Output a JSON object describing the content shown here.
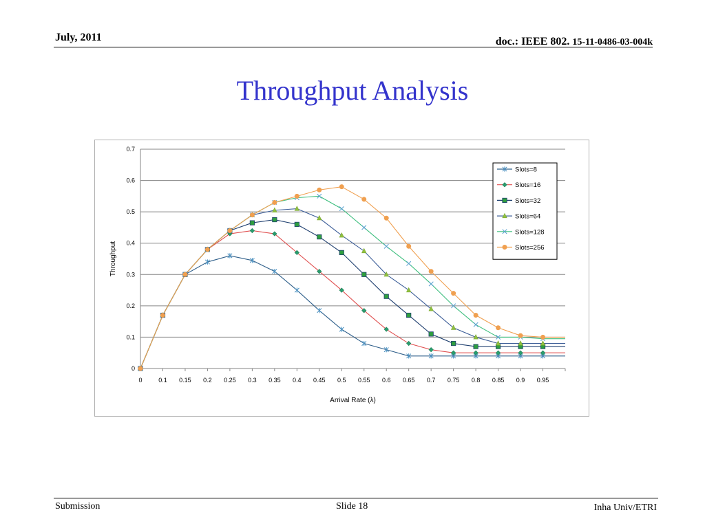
{
  "header": {
    "date": "July, 2011",
    "doc_prefix": "doc.: IEEE 802.",
    "doc_number": "15-11-0486-03-004k"
  },
  "slide_title": "Throughput Analysis",
  "footer": {
    "left": "Submission",
    "center": "Slide 18",
    "right": "Inha Univ/ETRI"
  },
  "colors": {
    "title": "#3333cc"
  },
  "chart_data": {
    "type": "line",
    "title": "",
    "xlabel": "Arrival Rate (λ)",
    "ylabel": "Throughput",
    "x": [
      0,
      0.1,
      0.15,
      0.2,
      0.25,
      0.3,
      0.35,
      0.4,
      0.45,
      0.5,
      0.55,
      0.6,
      0.65,
      0.7,
      0.75,
      0.8,
      0.85,
      0.9,
      0.95
    ],
    "y_ticks": [
      "0",
      "0.1",
      "0.2",
      "0.3",
      "0.4",
      "0.5",
      "0.6",
      "0.7"
    ],
    "ylim": [
      0,
      0.7
    ],
    "grid": "horizontal",
    "legend_position": "top-right",
    "series": [
      {
        "name": "Slots=8",
        "color": "#2f5f8a",
        "marker": "asterisk",
        "values": [
          0,
          0.17,
          0.3,
          0.34,
          0.36,
          0.345,
          0.31,
          0.25,
          0.185,
          0.125,
          0.08,
          0.06,
          0.04,
          0.04,
          0.04,
          0.04,
          0.04,
          0.04,
          0.04
        ]
      },
      {
        "name": "Slots=16",
        "color": "#e05050",
        "marker": "diamond",
        "values": [
          0,
          0.17,
          0.3,
          0.38,
          0.43,
          0.44,
          0.43,
          0.37,
          0.31,
          0.25,
          0.185,
          0.125,
          0.08,
          0.06,
          0.05,
          0.05,
          0.05,
          0.05,
          0.05
        ]
      },
      {
        "name": "Slots=32",
        "color": "#1f3f6f",
        "marker": "square",
        "values": [
          0,
          0.17,
          0.3,
          0.38,
          0.44,
          0.465,
          0.475,
          0.46,
          0.42,
          0.37,
          0.3,
          0.23,
          0.17,
          0.11,
          0.08,
          0.07,
          0.07,
          0.07,
          0.07
        ]
      },
      {
        "name": "Slots=64",
        "color": "#3e5f99",
        "marker": "triangle",
        "values": [
          0,
          0.17,
          0.3,
          0.38,
          0.44,
          0.49,
          0.505,
          0.51,
          0.48,
          0.425,
          0.375,
          0.3,
          0.25,
          0.19,
          0.13,
          0.1,
          0.08,
          0.08,
          0.08
        ]
      },
      {
        "name": "Slots=128",
        "color": "#3fbf7f",
        "marker": "x",
        "values": [
          0,
          0.17,
          0.3,
          0.38,
          0.44,
          0.49,
          0.53,
          0.545,
          0.55,
          0.51,
          0.45,
          0.39,
          0.335,
          0.27,
          0.2,
          0.14,
          0.1,
          0.1,
          0.095
        ]
      },
      {
        "name": "Slots=256",
        "color": "#f0a050",
        "marker": "circle",
        "values": [
          0,
          0.17,
          0.3,
          0.38,
          0.44,
          0.49,
          0.53,
          0.55,
          0.57,
          0.58,
          0.54,
          0.48,
          0.39,
          0.31,
          0.24,
          0.17,
          0.13,
          0.105,
          0.1
        ]
      }
    ]
  }
}
